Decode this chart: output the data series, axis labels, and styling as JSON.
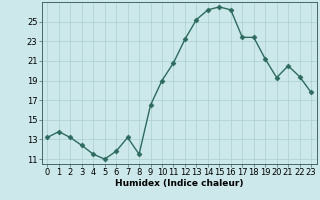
{
  "x": [
    0,
    1,
    2,
    3,
    4,
    5,
    6,
    7,
    8,
    9,
    10,
    11,
    12,
    13,
    14,
    15,
    16,
    17,
    18,
    19,
    20,
    21,
    22,
    23
  ],
  "y": [
    13.2,
    13.8,
    13.2,
    12.4,
    11.5,
    11.0,
    11.8,
    13.2,
    11.5,
    16.5,
    19.0,
    20.8,
    23.2,
    25.2,
    26.2,
    26.5,
    26.2,
    23.4,
    23.4,
    21.2,
    19.3,
    20.5,
    19.4,
    17.8
  ],
  "line_color": "#2d6b5e",
  "marker": "D",
  "marker_size": 2.5,
  "line_width": 1.0,
  "bg_color": "#cce8ea",
  "grid_color": "#aacfcf",
  "xlabel": "Humidex (Indice chaleur)",
  "xlim": [
    -0.5,
    23.5
  ],
  "ylim": [
    10.5,
    27.0
  ],
  "yticks": [
    11,
    13,
    15,
    17,
    19,
    21,
    23,
    25
  ],
  "xticks": [
    0,
    1,
    2,
    3,
    4,
    5,
    6,
    7,
    8,
    9,
    10,
    11,
    12,
    13,
    14,
    15,
    16,
    17,
    18,
    19,
    20,
    21,
    22,
    23
  ],
  "xlabel_fontsize": 6.5,
  "tick_fontsize": 6.0
}
